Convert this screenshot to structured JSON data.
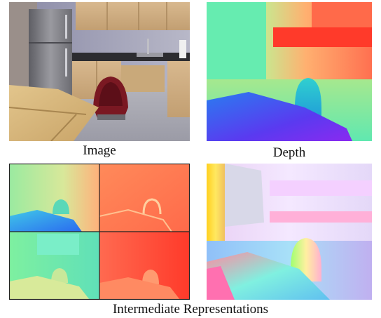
{
  "captions": {
    "image": "Image",
    "depth": "Depth",
    "intermediate": "Intermediate Representations"
  }
}
